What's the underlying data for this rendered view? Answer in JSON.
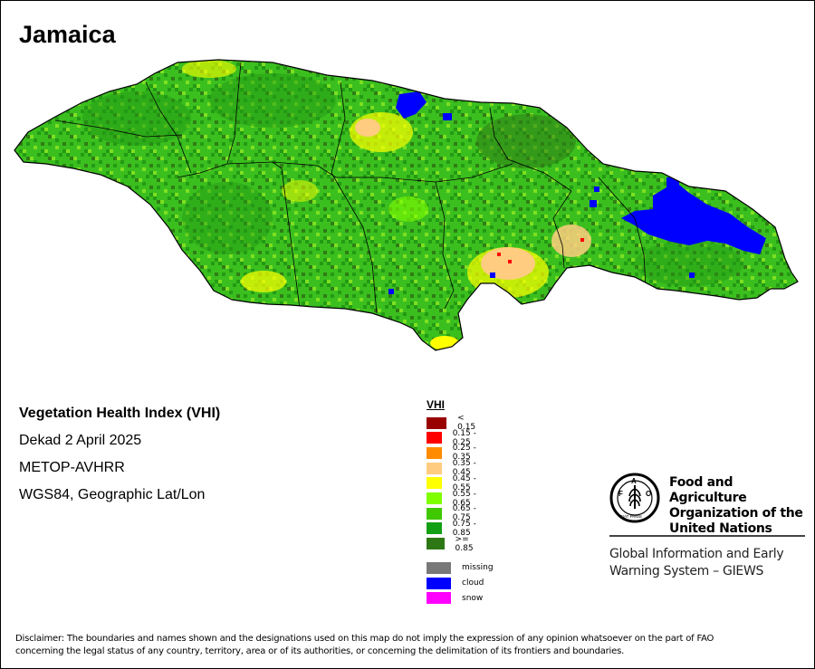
{
  "map": {
    "title": "Jamaica",
    "colors": {
      "land_base": "#3bbf1f",
      "land_dark": "#239a14",
      "land_deep": "#2f7d15",
      "land_light": "#7de021",
      "yellow": "#ffff00",
      "tan": "#ffcc80",
      "cloud": "#0000ff",
      "boundary": "#000000"
    }
  },
  "info": {
    "product": "Vegetation Health Index (VHI)",
    "period": "Dekad 2 April 2025",
    "sensor": "METOP-AVHRR",
    "projection": "WGS84, Geographic Lat/Lon"
  },
  "legend": {
    "title": "VHI",
    "classes": [
      {
        "label": "< 0.15",
        "color": "#990000"
      },
      {
        "label": "0.15 - 0.25",
        "color": "#ff0000"
      },
      {
        "label": "0.25 - 0.35",
        "color": "#ff8c00"
      },
      {
        "label": "0.35 - 0.45",
        "color": "#ffcc80"
      },
      {
        "label": "0.45 - 0.55",
        "color": "#ffff00"
      },
      {
        "label": "0.55 - 0.65",
        "color": "#80ff00"
      },
      {
        "label": "0.65 - 0.75",
        "color": "#40c800"
      },
      {
        "label": "0.75 - 0.85",
        "color": "#14a014"
      },
      {
        "label": ">= 0.85",
        "color": "#2d7814"
      }
    ],
    "special": [
      {
        "label": "missing",
        "color": "#787878"
      },
      {
        "label": "cloud",
        "color": "#0000ff"
      },
      {
        "label": "snow",
        "color": "#ff00ff"
      }
    ]
  },
  "fao": {
    "emblem_letters": "F A O",
    "motto": "FIAT PANIS",
    "name_line1": "Food and Agriculture",
    "name_line2": "Organization of the",
    "name_line3": "United Nations",
    "giews_line1": "Global Information and Early",
    "giews_line2": "Warning System – GIEWS"
  },
  "disclaimer": {
    "line1": "Disclaimer: The boundaries and names shown and the designations used on this map do not imply the expression of any opinion whatsoever on the part of FAO",
    "line2": "concerning the legal status of any country, territory, area or of its authorities, or concerning the delimitation of its frontiers and boundaries."
  }
}
